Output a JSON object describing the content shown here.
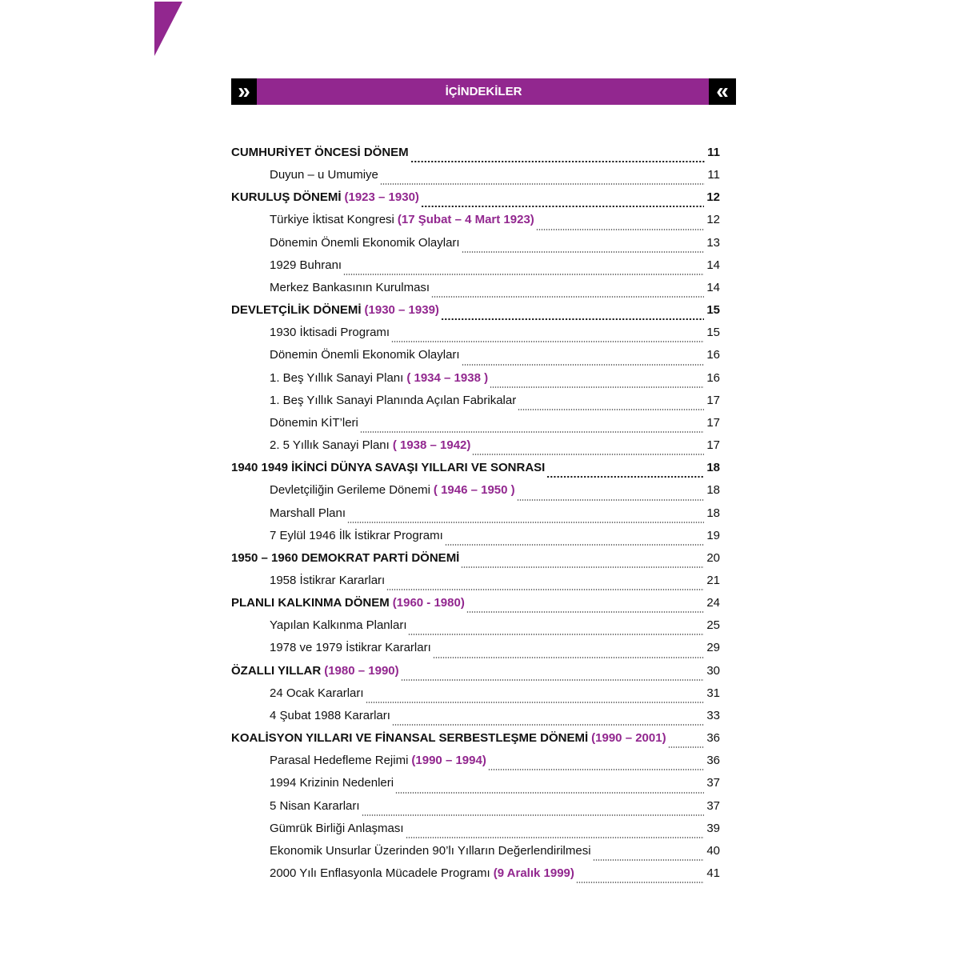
{
  "header": {
    "title": "İÇİNDEKİLER",
    "left_icon": "double-chevron-right",
    "right_icon": "double-chevron-left"
  },
  "colors": {
    "accent": "#92278f",
    "header_box": "#000000"
  },
  "entries": [
    {
      "level": "main",
      "text": "CUMHURİYET ÖNCESİ DÖNEM",
      "accent": "",
      "page": "11"
    },
    {
      "level": "sub",
      "text": "Duyun – u Umumiye",
      "accent": "",
      "page": "11"
    },
    {
      "level": "main",
      "text": "KURULUŞ DÖNEMİ",
      "accent": "(1923 – 1930)",
      "page": "12"
    },
    {
      "level": "sub",
      "text": "Türkiye İktisat Kongresi",
      "accent": "(17 Şubat – 4 Mart 1923)",
      "page": "12"
    },
    {
      "level": "sub",
      "text": "Dönemin Önemli Ekonomik Olayları",
      "accent": "",
      "page": "13"
    },
    {
      "level": "sub",
      "text": "1929 Buhranı",
      "accent": "",
      "page": "14"
    },
    {
      "level": "sub",
      "text": "Merkez Bankasının Kurulması",
      "accent": "",
      "page": "14"
    },
    {
      "level": "main",
      "text": "DEVLETÇİLİK DÖNEMİ",
      "accent": "(1930 – 1939)",
      "page": "15"
    },
    {
      "level": "sub",
      "text": "1930 İktisadi Programı",
      "accent": "",
      "page": "15"
    },
    {
      "level": "sub",
      "text": "Dönemin Önemli Ekonomik Olayları",
      "accent": "",
      "page": "16"
    },
    {
      "level": "sub",
      "text": "1. Beş  Yıllık Sanayi Planı",
      "accent": "( 1934 – 1938 )",
      "page": "16"
    },
    {
      "level": "sub",
      "text": "1. Beş Yıllık Sanayi Planında Açılan Fabrikalar",
      "accent": "",
      "page": "17"
    },
    {
      "level": "sub",
      "text": "Dönemin KİT’leri",
      "accent": "",
      "page": "17"
    },
    {
      "level": "sub",
      "text": "2. 5 Yıllık Sanayi Planı",
      "accent": "( 1938 – 1942)",
      "page": "17"
    },
    {
      "level": "main",
      "text": "1940 1949 İKİNCİ DÜNYA SAVAŞI YILLARI VE SONRASI",
      "accent": "",
      "page": "18"
    },
    {
      "level": "sub",
      "text": "Devletçiliğin Gerileme Dönemi",
      "accent": "( 1946 – 1950 )",
      "page": "18"
    },
    {
      "level": "sub",
      "text": "Marshall Planı",
      "accent": "",
      "page": "18"
    },
    {
      "level": "sub",
      "text": "7 Eylül 1946 İlk İstikrar Programı",
      "accent": "",
      "page": "19"
    },
    {
      "level": "main",
      "text": "1950 – 1960 DEMOKRAT PARTİ DÖNEMİ",
      "accent": "",
      "page": "20",
      "plainpage": true
    },
    {
      "level": "sub",
      "text": "1958 İstikrar Kararları",
      "accent": "",
      "page": "21"
    },
    {
      "level": "main",
      "text": "PLANLI KALKINMA DÖNEM",
      "accent": "(1960 - 1980)",
      "page": "24",
      "plainpage": true
    },
    {
      "level": "sub",
      "text": "Yapılan Kalkınma Planları",
      "accent": "",
      "page": "25"
    },
    {
      "level": "sub",
      "text": "1978 ve 1979 İstikrar Kararları",
      "accent": "",
      "page": "29"
    },
    {
      "level": "main",
      "text": "ÖZALLI YILLAR",
      "accent": "(1980 – 1990)",
      "page": "30",
      "plainpage": true
    },
    {
      "level": "sub",
      "text": "24 Ocak Kararları",
      "accent": "",
      "page": "31"
    },
    {
      "level": "sub",
      "text": "4 Şubat 1988 Kararları",
      "accent": "",
      "page": "33"
    },
    {
      "level": "main",
      "text": "KOALİSYON YILLARI VE FİNANSAL SERBESTLEŞME DÖNEMİ",
      "accent": "(1990 – 2001)",
      "page": "36",
      "plainpage": true
    },
    {
      "level": "sub",
      "text": "Parasal Hedefleme Rejimi",
      "accent": "(1990 – 1994)",
      "page": "36"
    },
    {
      "level": "sub",
      "text": "1994 Krizinin Nedenleri",
      "accent": "",
      "page": "37"
    },
    {
      "level": "sub",
      "text": "5 Nisan Kararları",
      "accent": "",
      "page": "37"
    },
    {
      "level": "sub",
      "text": "Gümrük Birliği Anlaşması",
      "accent": "",
      "page": "39"
    },
    {
      "level": "sub",
      "text": "Ekonomik Unsurlar Üzerinden 90’lı Yılların Değerlendirilmesi",
      "accent": "",
      "page": "40"
    },
    {
      "level": "sub",
      "text": "2000 Yılı Enflasyonla Mücadele Programı",
      "accent": "(9 Aralık 1999)",
      "page": "41"
    }
  ]
}
